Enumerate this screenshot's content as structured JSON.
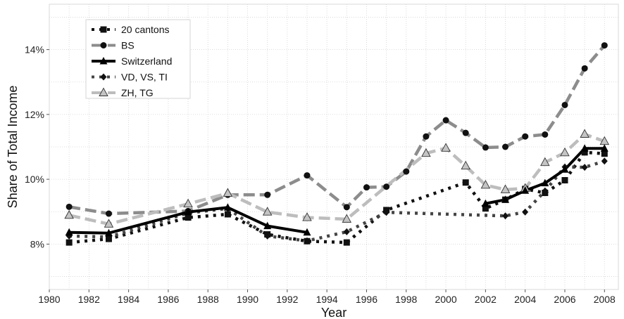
{
  "chart_data": {
    "type": "line",
    "xlabel": "Year",
    "ylabel": "Share of Total Income",
    "xlim": [
      1980,
      2008.7
    ],
    "ylim": [
      6.6,
      15.4
    ],
    "x_ticks": [
      1980,
      1982,
      1984,
      1986,
      1988,
      1990,
      1992,
      1994,
      1996,
      1998,
      2000,
      2002,
      2004,
      2006,
      2008
    ],
    "y_ticks": [
      8,
      10,
      12,
      14
    ],
    "y_tick_labels": [
      "8%",
      "10%",
      "12%",
      "14%"
    ],
    "grid": true,
    "legend_position": "top-left",
    "series": [
      {
        "name": "20 cantons",
        "color": "#111111",
        "line_style": "dotted",
        "marker": "square",
        "points": [
          [
            1981,
            8.05
          ],
          [
            1983,
            8.16
          ],
          [
            1987,
            8.82
          ],
          [
            1989,
            8.92
          ],
          [
            1991,
            8.3
          ],
          [
            1993,
            8.09
          ],
          [
            1995,
            8.05
          ],
          [
            1997,
            9.05
          ],
          [
            2001,
            9.9
          ],
          [
            2002,
            9.1
          ],
          [
            2003,
            9.37
          ],
          [
            2004,
            9.7
          ],
          [
            2005,
            9.58
          ],
          [
            2006,
            9.97
          ],
          [
            2007,
            10.83
          ],
          [
            2008,
            10.79
          ]
        ]
      },
      {
        "name": "BS",
        "color": "#8c8c8c",
        "line_style": "dashed",
        "marker": "circle",
        "points": [
          [
            1981,
            9.15
          ],
          [
            1983,
            8.94
          ],
          [
            1987,
            9.02
          ],
          [
            1989,
            9.52
          ],
          [
            1991,
            9.52
          ],
          [
            1993,
            10.12
          ],
          [
            1995,
            9.14
          ],
          [
            1996,
            9.75
          ],
          [
            1997,
            9.77
          ],
          [
            1998,
            10.24
          ],
          [
            1999,
            11.32
          ],
          [
            2000,
            11.82
          ],
          [
            2001,
            11.43
          ],
          [
            2002,
            10.98
          ],
          [
            2003,
            11.0
          ],
          [
            2004,
            11.32
          ],
          [
            2005,
            11.38
          ],
          [
            2006,
            12.29
          ],
          [
            2007,
            13.42
          ],
          [
            2008,
            14.13
          ]
        ]
      },
      {
        "name": "Switzerland",
        "color": "#000000",
        "line_style": "solid",
        "marker": "triangle",
        "segments": [
          [
            [
              1981,
              8.36
            ],
            [
              1983,
              8.34
            ],
            [
              1987,
              8.99
            ],
            [
              1989,
              9.13
            ],
            [
              1991,
              8.56
            ],
            [
              1993,
              8.36
            ]
          ],
          [
            [
              2002,
              9.25
            ],
            [
              2003,
              9.37
            ],
            [
              2004,
              9.65
            ],
            [
              2005,
              9.88
            ],
            [
              2006,
              10.3
            ],
            [
              2007,
              10.95
            ],
            [
              2008,
              10.95
            ]
          ]
        ]
      },
      {
        "name": "VD, VS, TI",
        "color": "#444444",
        "line_style": "dotted",
        "marker": "diamond",
        "points": [
          [
            1981,
            8.25
          ],
          [
            1983,
            8.22
          ],
          [
            1987,
            8.96
          ],
          [
            1989,
            9.1
          ],
          [
            1991,
            8.25
          ],
          [
            1993,
            8.1
          ],
          [
            1995,
            8.38
          ],
          [
            1997,
            8.98
          ],
          [
            2003,
            8.87
          ],
          [
            2004,
            8.99
          ],
          [
            2005,
            9.64
          ],
          [
            2006,
            10.38
          ],
          [
            2007,
            10.37
          ],
          [
            2008,
            10.56
          ]
        ]
      },
      {
        "name": "ZH, TG",
        "color": "#bdbdbd",
        "line_style": "dashed",
        "marker": "open-triangle",
        "points": [
          [
            1981,
            8.89
          ],
          [
            1983,
            8.62
          ],
          [
            1987,
            9.24
          ],
          [
            1989,
            9.57
          ],
          [
            1991,
            8.99
          ],
          [
            1993,
            8.82
          ],
          [
            1995,
            8.77
          ],
          [
            1999,
            10.8
          ],
          [
            2000,
            10.96
          ],
          [
            2001,
            10.41
          ],
          [
            2002,
            9.82
          ],
          [
            2003,
            9.68
          ],
          [
            2004,
            9.72
          ],
          [
            2005,
            10.52
          ],
          [
            2006,
            10.82
          ],
          [
            2007,
            11.39
          ],
          [
            2008,
            11.17
          ]
        ]
      }
    ]
  }
}
